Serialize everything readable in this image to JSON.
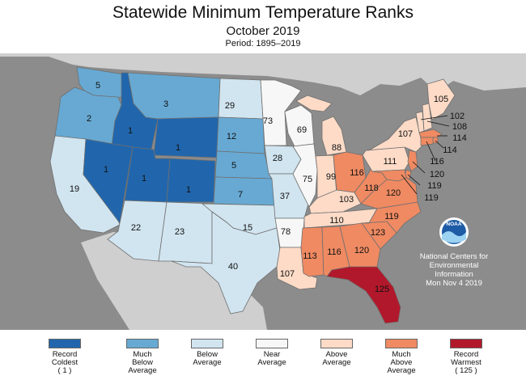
{
  "title": "Statewide Minimum Temperature Ranks",
  "subtitle": "October 2019",
  "period": "Period: 1895–2019",
  "colors": {
    "record_coldest": "#2166ac",
    "much_below": "#67a9d3",
    "below": "#d1e5f0",
    "near": "#f7f7f7",
    "above": "#fddbc7",
    "much_above": "#ef8a62",
    "record_warmest": "#b2182b",
    "ocean": "#8c8c8c",
    "land_outside": "#cfcfcf"
  },
  "credit": {
    "logo": "noaa-logo",
    "logo_text": "NOAA",
    "line1": "National Centers for",
    "line2": "Environmental",
    "line3": "Information",
    "line4": "Mon Nov  4 2019"
  },
  "legend": [
    {
      "category": "record_coldest",
      "lines": [
        "Record",
        "Coldest",
        "( 1 )"
      ]
    },
    {
      "category": "much_below",
      "lines": [
        "Much",
        "Below",
        "Average"
      ]
    },
    {
      "category": "below",
      "lines": [
        "Below",
        "Average"
      ]
    },
    {
      "category": "near",
      "lines": [
        "Near",
        "Average"
      ]
    },
    {
      "category": "above",
      "lines": [
        "Above",
        "Average"
      ]
    },
    {
      "category": "much_above",
      "lines": [
        "Much",
        "Above",
        "Average"
      ]
    },
    {
      "category": "record_warmest",
      "lines": [
        "Record",
        "Warmest",
        "( 125 )"
      ]
    }
  ],
  "states": {
    "WA": {
      "rank": "5",
      "category": "much_below"
    },
    "OR": {
      "rank": "2",
      "category": "much_below"
    },
    "CA": {
      "rank": "19",
      "category": "below"
    },
    "ID": {
      "rank": "1",
      "category": "record_coldest"
    },
    "NV": {
      "rank": "1",
      "category": "record_coldest"
    },
    "MT": {
      "rank": "3",
      "category": "much_below"
    },
    "WY": {
      "rank": "1",
      "category": "record_coldest"
    },
    "UT": {
      "rank": "1",
      "category": "record_coldest"
    },
    "CO": {
      "rank": "1",
      "category": "record_coldest"
    },
    "AZ": {
      "rank": "22",
      "category": "below"
    },
    "NM": {
      "rank": "23",
      "category": "below"
    },
    "ND": {
      "rank": "29",
      "category": "below"
    },
    "SD": {
      "rank": "12",
      "category": "much_below"
    },
    "NE": {
      "rank": "5",
      "category": "much_below"
    },
    "KS": {
      "rank": "7",
      "category": "much_below"
    },
    "OK": {
      "rank": "15",
      "category": "below"
    },
    "TX": {
      "rank": "40",
      "category": "below"
    },
    "MN": {
      "rank": "73",
      "category": "near"
    },
    "IA": {
      "rank": "28",
      "category": "below"
    },
    "MO": {
      "rank": "37",
      "category": "below"
    },
    "AR": {
      "rank": "78",
      "category": "near"
    },
    "LA": {
      "rank": "107",
      "category": "above"
    },
    "WI": {
      "rank": "69",
      "category": "near"
    },
    "IL": {
      "rank": "75",
      "category": "near"
    },
    "MI": {
      "rank": "88",
      "category": "above"
    },
    "IN": {
      "rank": "99",
      "category": "above"
    },
    "OH": {
      "rank": "116",
      "category": "much_above"
    },
    "KY": {
      "rank": "103",
      "category": "above"
    },
    "TN": {
      "rank": "110",
      "category": "above"
    },
    "MS": {
      "rank": "113",
      "category": "much_above"
    },
    "AL": {
      "rank": "116",
      "category": "much_above"
    },
    "GA": {
      "rank": "120",
      "category": "much_above"
    },
    "FL": {
      "rank": "125",
      "category": "record_warmest"
    },
    "SC": {
      "rank": "123",
      "category": "much_above"
    },
    "NC": {
      "rank": "119",
      "category": "much_above"
    },
    "VA": {
      "rank": "120",
      "category": "much_above"
    },
    "WV": {
      "rank": "118",
      "category": "much_above"
    },
    "PA": {
      "rank": "111",
      "category": "above"
    },
    "NY": {
      "rank": "107",
      "category": "above"
    },
    "VT": {
      "rank": "102",
      "category": "above"
    },
    "NH": {
      "rank": "108",
      "category": "above"
    },
    "ME": {
      "rank": "105",
      "category": "above"
    },
    "MA": {
      "rank": "114",
      "category": "much_above"
    },
    "RI": {
      "rank": "114",
      "category": "much_above"
    },
    "CT": {
      "rank": "116",
      "category": "much_above"
    },
    "NJ": {
      "rank": "120",
      "category": "much_above"
    },
    "DE": {
      "rank": "119",
      "category": "much_above"
    },
    "MD": {
      "rank": "119",
      "category": "much_above"
    }
  }
}
